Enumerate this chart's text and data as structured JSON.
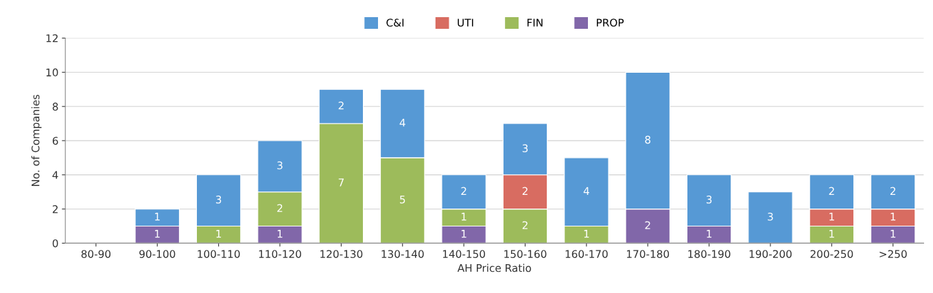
{
  "chart_data": {
    "type": "bar",
    "stacked": true,
    "xlabel": "AH Price Ratio",
    "ylabel": "No. of Companies",
    "categories": [
      "80-90",
      "90-100",
      "100-110",
      "110-120",
      "120-130",
      "130-140",
      "140-150",
      "150-160",
      "160-170",
      "170-180",
      "180-190",
      "190-200",
      "200-250",
      ">250"
    ],
    "series": [
      {
        "name": "PROP",
        "color": "#8167a9",
        "values": [
          null,
          1,
          null,
          1,
          null,
          null,
          1,
          null,
          null,
          2,
          1,
          null,
          null,
          1
        ]
      },
      {
        "name": "FIN",
        "color": "#9dbb5b",
        "values": [
          null,
          null,
          1,
          2,
          7,
          5,
          1,
          2,
          1,
          null,
          null,
          null,
          1,
          null
        ]
      },
      {
        "name": "UTI",
        "color": "#d86c61",
        "values": [
          null,
          null,
          null,
          null,
          null,
          null,
          null,
          2,
          null,
          null,
          null,
          null,
          1,
          1
        ]
      },
      {
        "name": "C&I",
        "color": "#5699d5",
        "values": [
          null,
          1,
          3,
          3,
          2,
          4,
          2,
          3,
          4,
          8,
          3,
          3,
          2,
          2
        ]
      }
    ],
    "ylim": [
      0,
      12
    ],
    "yticks": [
      0,
      2,
      4,
      6,
      8,
      10,
      12
    ],
    "grid": "y",
    "legend": "top",
    "data_labels": true
  }
}
